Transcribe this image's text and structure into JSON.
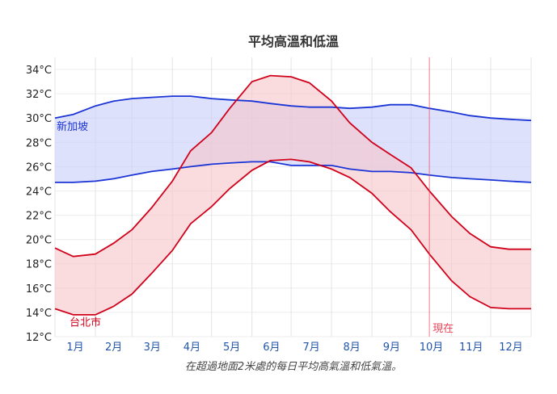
{
  "chart_data": {
    "type": "area",
    "title": "平均高溫和低溫",
    "caption": "在超過地面2米處的每日平均高氣溫和低氣溫。",
    "x_unit": "day_of_year",
    "xlim": [
      1,
      366
    ],
    "ylim": [
      12,
      35
    ],
    "yticks": [
      12,
      14,
      16,
      18,
      20,
      22,
      24,
      26,
      28,
      30,
      32,
      34
    ],
    "ytick_labels": [
      "12°C",
      "14°C",
      "16°C",
      "18°C",
      "20°C",
      "22°C",
      "24°C",
      "26°C",
      "28°C",
      "30°C",
      "32°C",
      "34°C"
    ],
    "month_labels": [
      "1月",
      "2月",
      "3月",
      "4月",
      "5月",
      "6月",
      "7月",
      "8月",
      "9月",
      "10月",
      "11月",
      "12月"
    ],
    "now_marker": {
      "label": "現在",
      "day": 288,
      "color": "#ee4455"
    },
    "series": [
      {
        "name": "新加坡",
        "color": "#1a34d6",
        "fill": "#c8cdfa",
        "x": [
          1,
          15,
          32,
          46,
          60,
          75,
          91,
          105,
          121,
          135,
          152,
          166,
          182,
          196,
          213,
          227,
          244,
          258,
          274,
          288,
          305,
          319,
          335,
          349,
          366
        ],
        "high": [
          30.0,
          30.3,
          31.0,
          31.4,
          31.6,
          31.7,
          31.8,
          31.8,
          31.6,
          31.5,
          31.4,
          31.2,
          31.0,
          30.9,
          30.9,
          30.8,
          30.9,
          31.1,
          31.1,
          30.8,
          30.5,
          30.2,
          30.0,
          29.9,
          29.8
        ],
        "low": [
          24.7,
          24.7,
          24.8,
          25.0,
          25.3,
          25.6,
          25.8,
          26.0,
          26.2,
          26.3,
          26.4,
          26.4,
          26.1,
          26.1,
          26.1,
          25.8,
          25.6,
          25.6,
          25.5,
          25.3,
          25.1,
          25.0,
          24.9,
          24.8,
          24.7
        ]
      },
      {
        "name": "台北市",
        "color": "#d0021b",
        "fill": "#f6c4c9",
        "x": [
          1,
          15,
          32,
          46,
          60,
          75,
          91,
          105,
          121,
          135,
          152,
          166,
          182,
          196,
          213,
          227,
          244,
          258,
          274,
          288,
          305,
          319,
          335,
          349,
          366
        ],
        "high": [
          19.3,
          18.6,
          18.8,
          19.7,
          20.8,
          22.6,
          24.8,
          27.3,
          28.8,
          30.8,
          33.0,
          33.5,
          33.4,
          32.9,
          31.4,
          29.6,
          28.0,
          27.0,
          25.9,
          24.0,
          21.9,
          20.5,
          19.4,
          19.2,
          19.2
        ],
        "low": [
          14.3,
          13.8,
          13.8,
          14.5,
          15.5,
          17.2,
          19.1,
          21.3,
          22.7,
          24.2,
          25.7,
          26.5,
          26.6,
          26.4,
          25.8,
          25.1,
          23.8,
          22.3,
          20.8,
          18.8,
          16.6,
          15.3,
          14.4,
          14.3,
          14.3
        ]
      }
    ]
  }
}
